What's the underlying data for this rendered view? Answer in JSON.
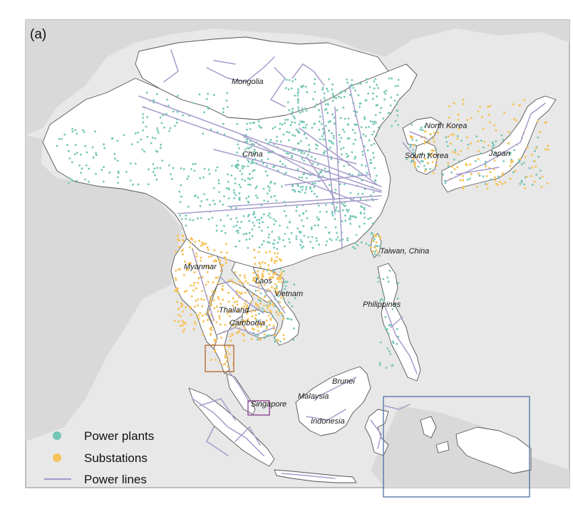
{
  "panel_label": "(a)",
  "colors": {
    "sea": "#e8e8e8",
    "land_in": "#ffffff",
    "land_out": "#d9d9d9",
    "border": "#555555",
    "plant": "#73c7b5",
    "substation": "#f6c35a",
    "line": "#a69ccb",
    "frame": "#888888",
    "inset_sg": "#8b3a8f",
    "inset_th": "#b5652a",
    "inset_east": "#4a6fa5"
  },
  "legend": {
    "plants": "Power plants",
    "substations": "Substations",
    "lines": "Power lines"
  },
  "labels": {
    "mongolia": "Mongolia",
    "china": "China",
    "north_korea": "North Korea",
    "south_korea": "South Korea",
    "japan": "Japan",
    "taiwan": "Taiwan, China",
    "myanmar": "Myanmar",
    "laos": "Laos",
    "vietnam": "Vietnam",
    "thailand": "Thailand",
    "cambodia": "Cambodia",
    "philippines": "Philippines",
    "brunei": "Brunei",
    "malaysia": "Malaysia",
    "singapore": "Singapore",
    "indonesia": "Indonesia"
  }
}
